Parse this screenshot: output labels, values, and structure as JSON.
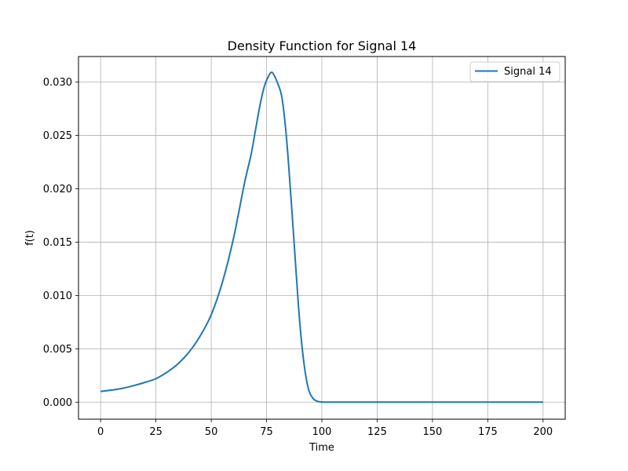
{
  "chart_data": {
    "type": "line",
    "title": "Density Function for Signal 14",
    "xlabel": "Time",
    "ylabel": "f(t)",
    "xlim": [
      -10,
      210
    ],
    "ylim": [
      -0.0016,
      0.0324
    ],
    "x_ticks": [
      0,
      25,
      50,
      75,
      100,
      125,
      150,
      175,
      200
    ],
    "x_tick_labels": [
      "0",
      "25",
      "50",
      "75",
      "100",
      "125",
      "150",
      "175",
      "200"
    ],
    "y_ticks": [
      0.0,
      0.005,
      0.01,
      0.015,
      0.02,
      0.025,
      0.03
    ],
    "y_tick_labels": [
      "0.000",
      "0.005",
      "0.010",
      "0.015",
      "0.020",
      "0.025",
      "0.030"
    ],
    "grid": true,
    "legend_position": "top-right",
    "series": [
      {
        "name": "Signal 14",
        "color": "#1f77b4",
        "x": [
          0,
          5,
          10,
          15,
          20,
          25,
          30,
          35,
          40,
          45,
          50,
          55,
          60,
          65,
          68,
          70,
          72,
          74,
          76,
          77,
          78,
          80,
          82,
          84,
          86,
          88,
          90,
          92,
          94,
          96,
          98,
          100,
          102,
          105,
          110,
          120,
          150,
          200
        ],
        "y": [
          0.001,
          0.00113,
          0.0013,
          0.00155,
          0.00185,
          0.0022,
          0.0028,
          0.0036,
          0.0047,
          0.0062,
          0.0082,
          0.0112,
          0.0153,
          0.0205,
          0.0232,
          0.0255,
          0.0278,
          0.0296,
          0.0306,
          0.0309,
          0.0308,
          0.0299,
          0.0285,
          0.0248,
          0.0193,
          0.0133,
          0.0075,
          0.0035,
          0.0012,
          0.00035,
          8e-05,
          1e-05,
          0.0,
          0.0,
          0.0,
          0.0,
          0.0,
          0.0
        ]
      }
    ]
  }
}
